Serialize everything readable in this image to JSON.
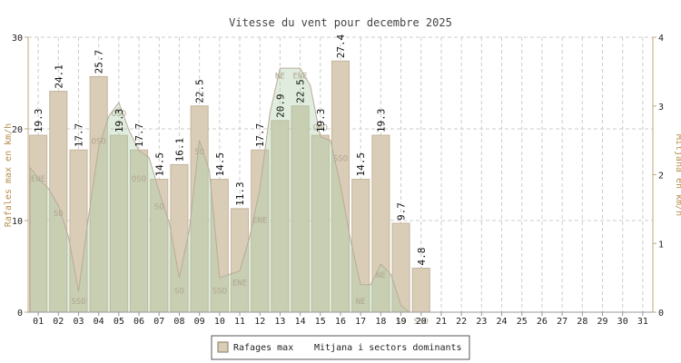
{
  "chart_data": {
    "type": "bar",
    "title": "Vitesse du vent pour decembre 2025",
    "ylabel": "Rafales max en km/h",
    "y2label": "Mitjana en km/h",
    "ylim": [
      0,
      30
    ],
    "y2lim": [
      0,
      4
    ],
    "yticks": [
      "0",
      "10",
      "20",
      "30"
    ],
    "y2ticks": [
      "0",
      "1",
      "2",
      "3",
      "4"
    ],
    "categories": [
      "01",
      "02",
      "03",
      "04",
      "05",
      "06",
      "07",
      "08",
      "09",
      "10",
      "11",
      "12",
      "13",
      "14",
      "15",
      "16",
      "17",
      "18",
      "19",
      "20",
      "21",
      "22",
      "23",
      "24",
      "25",
      "26",
      "27",
      "28",
      "29",
      "30",
      "31"
    ],
    "bar_series": {
      "name": "Rafages max",
      "values": [
        19.3,
        24.1,
        17.7,
        25.7,
        19.3,
        17.7,
        14.5,
        16.1,
        22.5,
        14.5,
        11.3,
        17.7,
        20.9,
        22.5,
        19.3,
        27.4,
        14.5,
        19.3,
        9.7,
        4.8
      ],
      "labels": [
        "19.3",
        "24.1",
        "17.7",
        "25.7",
        "19.3",
        "17.7",
        "14.5",
        "16.1",
        "22.5",
        "14.5",
        "11.3",
        "17.7",
        "20.9",
        "22.5",
        "19.3",
        "27.4",
        "14.5",
        "19.3",
        "9.7",
        "4.8"
      ]
    },
    "area_series": {
      "name": "Mitjana i sectors dominants",
      "x": [
        0.6,
        1,
        1.5,
        2,
        2.5,
        3,
        3.5,
        4,
        4.5,
        5,
        5.5,
        6,
        6.5,
        7,
        7.5,
        8,
        8.5,
        9,
        9.5,
        10,
        10.5,
        11,
        11.5,
        12,
        12.5,
        13,
        13.5,
        14,
        14.5,
        15,
        15.5,
        16,
        16.5,
        17,
        17.5,
        18,
        18.5,
        19,
        19.4
      ],
      "values": [
        2.1,
        1.95,
        1.8,
        1.55,
        1.1,
        0.3,
        1.4,
        2.4,
        2.85,
        3.05,
        2.65,
        2.35,
        2.25,
        1.75,
        1.3,
        0.5,
        1.2,
        2.5,
        2.05,
        0.5,
        0.55,
        0.6,
        1.1,
        1.8,
        2.9,
        3.55,
        3.55,
        3.55,
        3.3,
        2.55,
        2.5,
        1.85,
        1.05,
        0.4,
        0.4,
        0.7,
        0.55,
        0.1,
        0.0
      ]
    },
    "direction_labels": [
      {
        "day": 1,
        "y": 1.9,
        "text": "ENE"
      },
      {
        "day": 2,
        "y": 1.4,
        "text": "SO"
      },
      {
        "day": 3,
        "y": 0.12,
        "text": "SSO"
      },
      {
        "day": 4,
        "y": 2.45,
        "text": "OSO"
      },
      {
        "day": 5,
        "y": 2.85,
        "text": "OSO"
      },
      {
        "day": 6,
        "y": 1.9,
        "text": "OSO"
      },
      {
        "day": 7,
        "y": 1.5,
        "text": "SO"
      },
      {
        "day": 8,
        "y": 0.27,
        "text": "SO"
      },
      {
        "day": 9,
        "y": 2.3,
        "text": "SO"
      },
      {
        "day": 10,
        "y": 0.27,
        "text": "SSO"
      },
      {
        "day": 11,
        "y": 0.39,
        "text": "ENE"
      },
      {
        "day": 12,
        "y": 1.3,
        "text": "ENE"
      },
      {
        "day": 13,
        "y": 3.4,
        "text": "NE"
      },
      {
        "day": 14,
        "y": 3.4,
        "text": "ENE"
      },
      {
        "day": 15,
        "y": 2.65,
        "text": "ONO"
      },
      {
        "day": 16,
        "y": 2.2,
        "text": "SSO"
      },
      {
        "day": 17,
        "y": 0.12,
        "text": "NE"
      },
      {
        "day": 18,
        "y": 0.5,
        "text": "NE"
      },
      {
        "day": 19,
        "y": -0.17,
        "text": "SO"
      },
      {
        "day": 20,
        "y": -0.17,
        "text": "SSO"
      }
    ],
    "legend": {
      "position": "bottom",
      "items": [
        "Rafages max",
        "Mitjana i sectors dominants"
      ]
    },
    "grid": true,
    "colors": {
      "bar_fill": "#d9cdb8",
      "bar_stroke": "#c4b49c",
      "area_fill": "#aecfa8",
      "area_stroke": "#b8ab98",
      "axis": "#c2aa7c",
      "axis_text": "#b58e4a",
      "grid": "#cccccc",
      "title": "#444444",
      "direction_text": "#b0a690"
    }
  }
}
